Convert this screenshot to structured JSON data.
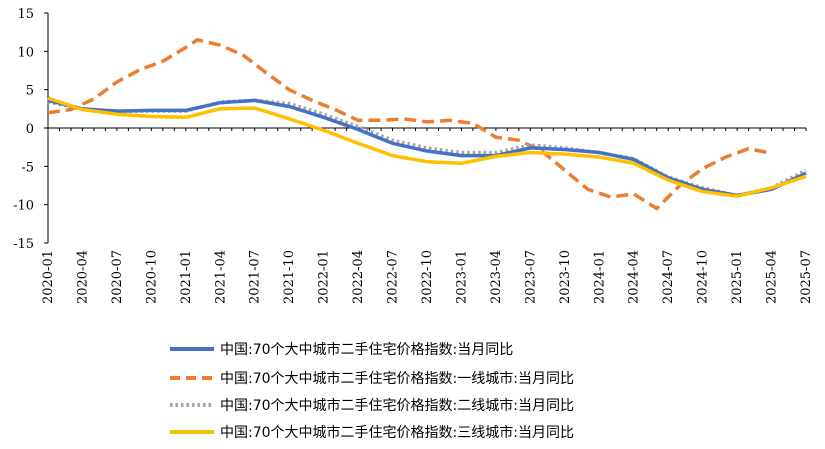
{
  "chart_data": {
    "type": "line",
    "title": "",
    "xlabel": "",
    "ylabel": "",
    "ylim": [
      -15,
      15
    ],
    "yticks": [
      "15",
      "10",
      "5",
      "0",
      "-5",
      "-10",
      "-15"
    ],
    "x_tick_labels": [
      "2020-01",
      "2020-04",
      "2020-07",
      "2020-10",
      "2021-01",
      "2021-04",
      "2021-07",
      "2021-10",
      "2022-01",
      "2022-04",
      "2022-07",
      "2022-10",
      "2023-01",
      "2023-04",
      "2023-07",
      "2023-10",
      "2024-01",
      "2024-04",
      "2024-07",
      "2024-10",
      "2025-01",
      "2025-04",
      "2025-07"
    ],
    "x_months_count": 67,
    "series": [
      {
        "name": "中国:70个大中城市二手住宅价格指数:当月同比",
        "color": "#4472C4",
        "style": "solid",
        "key": [
          [
            0,
            3.6
          ],
          [
            3,
            2.5
          ],
          [
            6,
            2.2
          ],
          [
            9,
            2.3
          ],
          [
            12,
            2.3
          ],
          [
            15,
            3.3
          ],
          [
            18,
            3.6
          ],
          [
            21,
            2.8
          ],
          [
            24,
            1.4
          ],
          [
            27,
            -0.2
          ],
          [
            30,
            -2.0
          ],
          [
            33,
            -3.0
          ],
          [
            36,
            -3.6
          ],
          [
            39,
            -3.6
          ],
          [
            42,
            -2.6
          ],
          [
            45,
            -2.8
          ],
          [
            48,
            -3.2
          ],
          [
            51,
            -4.1
          ],
          [
            54,
            -6.5
          ],
          [
            57,
            -8.0
          ],
          [
            60,
            -8.8
          ],
          [
            63,
            -8.0
          ],
          [
            66,
            -5.9
          ]
        ]
      },
      {
        "name": "中国:70个大中城市二手住宅价格指数:一线城市:当月同比",
        "color": "#ED7D31",
        "style": "dashed",
        "key": [
          [
            0,
            2.0
          ],
          [
            2,
            2.4
          ],
          [
            4,
            3.8
          ],
          [
            6,
            6.0
          ],
          [
            8,
            7.6
          ],
          [
            10,
            8.7
          ],
          [
            12,
            10.5
          ],
          [
            13,
            11.5
          ],
          [
            15,
            10.8
          ],
          [
            17,
            9.5
          ],
          [
            19,
            7.2
          ],
          [
            21,
            5.0
          ],
          [
            23,
            3.6
          ],
          [
            25,
            2.4
          ],
          [
            27,
            1.0
          ],
          [
            29,
            1.0
          ],
          [
            31,
            1.2
          ],
          [
            33,
            0.8
          ],
          [
            35,
            1.0
          ],
          [
            37,
            0.6
          ],
          [
            39,
            -1.2
          ],
          [
            41,
            -1.6
          ],
          [
            43,
            -3.0
          ],
          [
            45,
            -5.5
          ],
          [
            47,
            -8.0
          ],
          [
            49,
            -9.0
          ],
          [
            51,
            -8.6
          ],
          [
            53,
            -10.5
          ],
          [
            55,
            -7.5
          ],
          [
            57,
            -5.3
          ],
          [
            59,
            -3.8
          ],
          [
            61,
            -2.7
          ],
          [
            63,
            -3.3
          ]
        ]
      },
      {
        "name": "中国:70个大中城市二手住宅价格指数:二线城市:当月同比",
        "color": "#A5A5A5",
        "style": "dotted",
        "key": [
          [
            0,
            3.4
          ],
          [
            3,
            2.4
          ],
          [
            6,
            2.2
          ],
          [
            9,
            2.2
          ],
          [
            12,
            2.2
          ],
          [
            15,
            3.4
          ],
          [
            18,
            3.6
          ],
          [
            21,
            3.2
          ],
          [
            24,
            1.8
          ],
          [
            27,
            0.2
          ],
          [
            30,
            -1.6
          ],
          [
            33,
            -2.6
          ],
          [
            36,
            -3.2
          ],
          [
            39,
            -3.2
          ],
          [
            42,
            -2.2
          ],
          [
            45,
            -2.6
          ],
          [
            48,
            -3.2
          ],
          [
            51,
            -4.0
          ],
          [
            54,
            -6.4
          ],
          [
            57,
            -7.8
          ],
          [
            60,
            -8.8
          ],
          [
            63,
            -7.8
          ],
          [
            66,
            -5.5
          ]
        ]
      },
      {
        "name": "中国:70个大中城市二手住宅价格指数:三线城市:当月同比",
        "color": "#FFC000",
        "style": "solid",
        "key": [
          [
            0,
            3.9
          ],
          [
            3,
            2.4
          ],
          [
            6,
            1.8
          ],
          [
            9,
            1.5
          ],
          [
            12,
            1.4
          ],
          [
            15,
            2.5
          ],
          [
            18,
            2.6
          ],
          [
            21,
            1.2
          ],
          [
            24,
            -0.3
          ],
          [
            27,
            -2.0
          ],
          [
            30,
            -3.6
          ],
          [
            33,
            -4.4
          ],
          [
            36,
            -4.6
          ],
          [
            39,
            -3.7
          ],
          [
            42,
            -3.2
          ],
          [
            45,
            -3.4
          ],
          [
            48,
            -3.8
          ],
          [
            51,
            -4.6
          ],
          [
            54,
            -6.8
          ],
          [
            57,
            -8.3
          ],
          [
            60,
            -8.9
          ],
          [
            63,
            -7.8
          ],
          [
            66,
            -6.3
          ]
        ]
      }
    ]
  }
}
